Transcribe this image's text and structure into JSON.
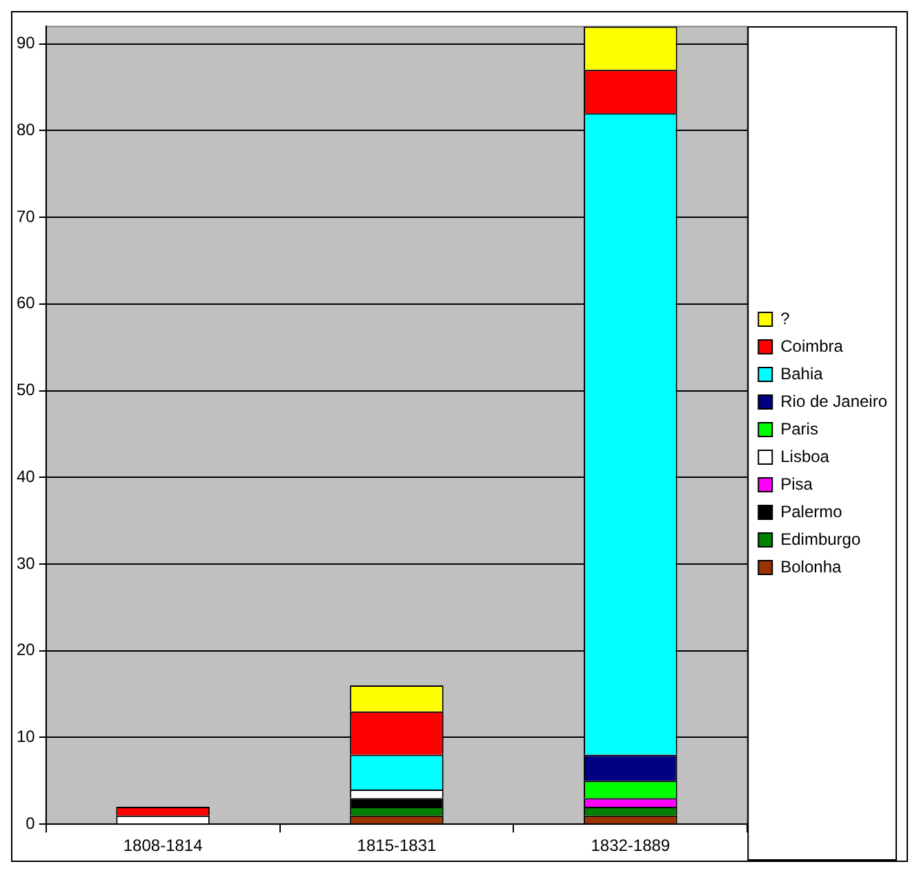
{
  "chart_data": {
    "type": "bar",
    "stacked": true,
    "categories": [
      "1808-1814",
      "1815-1831",
      "1832-1889"
    ],
    "series": [
      {
        "name": "Bolonha",
        "color": "#993300",
        "values": [
          0,
          1,
          1
        ]
      },
      {
        "name": "Edimburgo",
        "color": "#008000",
        "values": [
          0,
          1,
          1
        ]
      },
      {
        "name": "Palermo",
        "color": "#000000",
        "values": [
          0,
          1,
          0
        ]
      },
      {
        "name": "Pisa",
        "color": "#ff00ff",
        "values": [
          0,
          0,
          1
        ]
      },
      {
        "name": "Lisboa",
        "color": "#ffffff",
        "values": [
          1,
          1,
          0
        ]
      },
      {
        "name": "Paris",
        "color": "#00ff00",
        "values": [
          0,
          0,
          2
        ]
      },
      {
        "name": "Rio de Janeiro",
        "color": "#000080",
        "values": [
          0,
          0,
          3
        ]
      },
      {
        "name": "Bahia",
        "color": "#00ffff",
        "values": [
          0,
          4,
          74
        ]
      },
      {
        "name": "Coimbra",
        "color": "#ff0000",
        "values": [
          1,
          5,
          5
        ]
      },
      {
        "name": "?",
        "color": "#ffff00",
        "values": [
          0,
          3,
          5
        ]
      }
    ],
    "ylim": [
      0,
      92
    ],
    "yticks": [
      0,
      10,
      20,
      30,
      40,
      50,
      60,
      70,
      80,
      90
    ],
    "grid": "y",
    "legend": "right"
  }
}
